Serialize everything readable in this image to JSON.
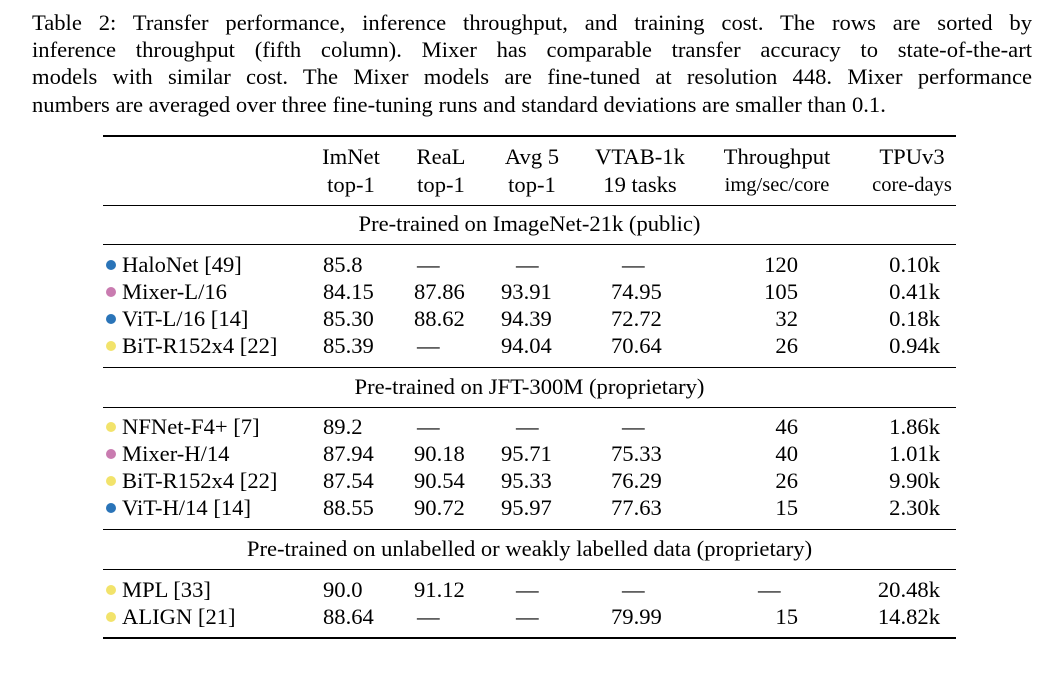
{
  "caption": {
    "lines": [
      "Table 2: Transfer performance, inference throughput, and training cost. The rows are sorted by",
      "inference throughput (fifth column). Mixer has comparable transfer accuracy to state-of-the-art",
      "models with similar cost. The Mixer models are fine-tuned at resolution 448. Mixer performance",
      "numbers are averaged over three fine-tuning runs and standard deviations are smaller than 0.1."
    ]
  },
  "table": {
    "headers": [
      {
        "line1": "ImNet",
        "line2": "top-1"
      },
      {
        "line1": "ReaL",
        "line2": "top-1"
      },
      {
        "line1": "Avg 5",
        "line2": "top-1"
      },
      {
        "line1": "VTAB-1k",
        "line2": "19 tasks"
      },
      {
        "line1": "Throughput",
        "line2": "img/sec/core"
      },
      {
        "line1": "TPUv3",
        "line2": "core-days"
      }
    ],
    "colors": {
      "blue": "#2a74b8",
      "pink": "#c97bb0",
      "yellow": "#f2e36b"
    },
    "sections": [
      {
        "title": "Pre-trained on ImageNet-21k (public)",
        "rows": [
          {
            "model": "HaloNet [49]",
            "dot": "blue",
            "values": [
              "85.8",
              "—",
              "—",
              "—",
              "120",
              "0.10k"
            ]
          },
          {
            "model": "Mixer-L/16",
            "dot": "pink",
            "values": [
              "84.15",
              "87.86",
              "93.91",
              "74.95",
              "105",
              "0.41k"
            ]
          },
          {
            "model": "ViT-L/16 [14]",
            "dot": "blue",
            "values": [
              "85.30",
              "88.62",
              "94.39",
              "72.72",
              "32",
              "0.18k"
            ]
          },
          {
            "model": "BiT-R152x4 [22]",
            "dot": "yellow",
            "values": [
              "85.39",
              "—",
              "94.04",
              "70.64",
              "26",
              "0.94k"
            ]
          }
        ]
      },
      {
        "title": "Pre-trained on JFT-300M (proprietary)",
        "rows": [
          {
            "model": "NFNet-F4+ [7]",
            "dot": "yellow",
            "values": [
              "89.2",
              "—",
              "—",
              "—",
              "46",
              "1.86k"
            ]
          },
          {
            "model": "Mixer-H/14",
            "dot": "pink",
            "values": [
              "87.94",
              "90.18",
              "95.71",
              "75.33",
              "40",
              "1.01k"
            ]
          },
          {
            "model": "BiT-R152x4 [22]",
            "dot": "yellow",
            "values": [
              "87.54",
              "90.54",
              "95.33",
              "76.29",
              "26",
              "9.90k"
            ]
          },
          {
            "model": "ViT-H/14 [14]",
            "dot": "blue",
            "values": [
              "88.55",
              "90.72",
              "95.97",
              "77.63",
              "15",
              "2.30k"
            ]
          }
        ]
      },
      {
        "title": "Pre-trained on unlabelled or weakly labelled data (proprietary)",
        "rows": [
          {
            "model": "MPL [33]",
            "dot": "yellow",
            "values": [
              "90.0",
              "91.12",
              "—",
              "—",
              "—",
              "20.48k"
            ]
          },
          {
            "model": "ALIGN [21]",
            "dot": "yellow",
            "values": [
              "88.64",
              "—",
              "—",
              "79.99",
              "15",
              "14.82k"
            ]
          }
        ]
      }
    ]
  }
}
